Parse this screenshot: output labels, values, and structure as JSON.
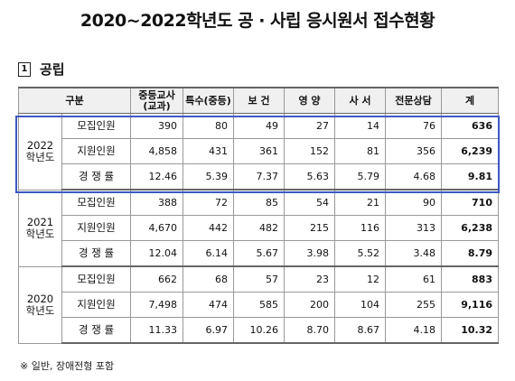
{
  "title": "2020~2022학년도 공 · 사립 응시원서 접수현황",
  "section": {
    "number": "1",
    "label": "공립"
  },
  "headers": [
    "구분",
    "중등교사\n(교과)",
    "특수(중등)",
    "보 건",
    "영 양",
    "사 서",
    "전문상담",
    "계"
  ],
  "groups": [
    {
      "year": "2022\n학년도",
      "rows": [
        {
          "label": "모집인원",
          "values": [
            "390",
            "80",
            "49",
            "27",
            "14",
            "76"
          ],
          "total": "636"
        },
        {
          "label": "지원인원",
          "values": [
            "4,858",
            "431",
            "361",
            "152",
            "81",
            "356"
          ],
          "total": "6,239"
        },
        {
          "label": "경 쟁 률",
          "values": [
            "12.46",
            "5.39",
            "7.37",
            "5.63",
            "5.79",
            "4.68"
          ],
          "total": "9.81"
        }
      ]
    },
    {
      "year": "2021\n학년도",
      "rows": [
        {
          "label": "모집인원",
          "values": [
            "388",
            "72",
            "85",
            "54",
            "21",
            "90"
          ],
          "total": "710"
        },
        {
          "label": "지원인원",
          "values": [
            "4,670",
            "442",
            "482",
            "215",
            "116",
            "313"
          ],
          "total": "6,238"
        },
        {
          "label": "경 쟁 률",
          "values": [
            "12.04",
            "6.14",
            "5.67",
            "3.98",
            "5.52",
            "3.48"
          ],
          "total": "8.79"
        }
      ]
    },
    {
      "year": "2020\n학년도",
      "rows": [
        {
          "label": "모집인원",
          "values": [
            "662",
            "68",
            "57",
            "23",
            "12",
            "61"
          ],
          "total": "883"
        },
        {
          "label": "지원인원",
          "values": [
            "7,498",
            "474",
            "585",
            "200",
            "104",
            "255"
          ],
          "total": "9,116"
        },
        {
          "label": "경 쟁 률",
          "values": [
            "11.33",
            "6.97",
            "10.26",
            "8.70",
            "8.67",
            "4.18"
          ],
          "total": "10.32"
        }
      ]
    }
  ],
  "note": "※ 일반, 장애전형 포함",
  "colors": {
    "highlight": "#3d58c4",
    "header_bg": "#f0f0f0"
  }
}
